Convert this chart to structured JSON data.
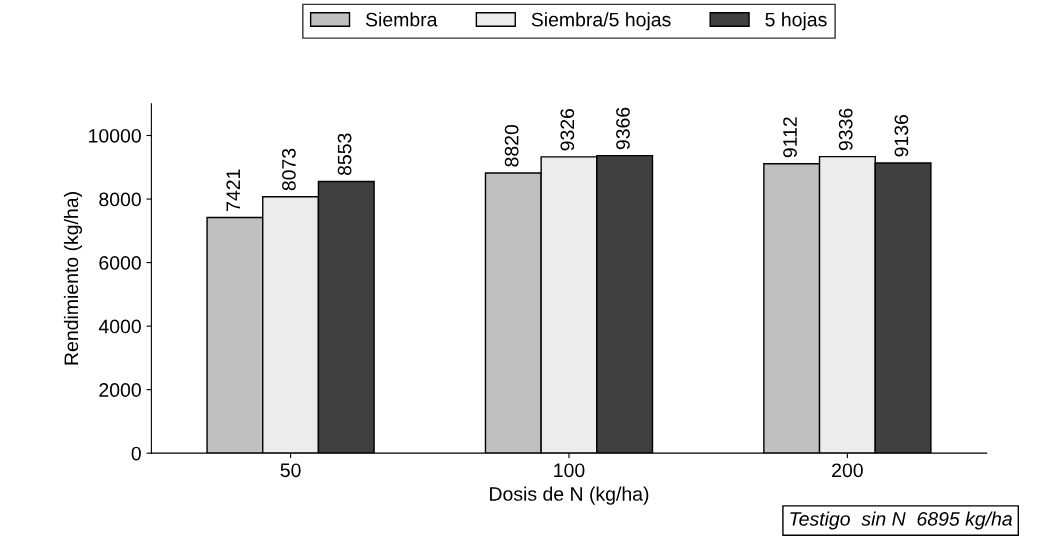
{
  "chart_data": {
    "type": "bar",
    "xlabel": "Dosis de N (kg/ha)",
    "ylabel": "Rendimiento (kg/ha)",
    "categories": [
      "50",
      "100",
      "200"
    ],
    "series": [
      {
        "name": "Siembra",
        "color": "#c0c0c0",
        "values": [
          7421,
          8820,
          9112
        ]
      },
      {
        "name": "Siembra/5 hojas",
        "color": "#ececec",
        "values": [
          8073,
          9326,
          9336
        ]
      },
      {
        "name": "5 hojas",
        "color": "#404040",
        "values": [
          8553,
          9366,
          9136
        ]
      }
    ],
    "ylim": [
      0,
      11000
    ],
    "yticks": [
      0,
      2000,
      4000,
      6000,
      8000,
      10000
    ],
    "data_labels": true,
    "grid": false,
    "legend": "top",
    "annotations": [
      "Testigo  sin N  6895 kg/ha"
    ]
  }
}
